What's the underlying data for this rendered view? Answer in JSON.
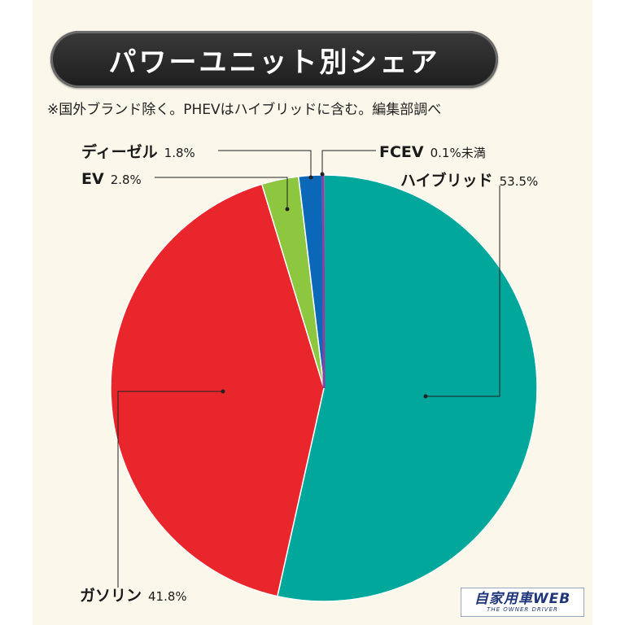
{
  "header": {
    "title": "パワーユニット別シェア",
    "subtitle": "※国外ブランド除く。PHEVはハイブリッドに含む。編集部調べ"
  },
  "chart_data": {
    "type": "pie",
    "title": "パワーユニット別シェア",
    "slices": [
      {
        "name": "ハイブリッド",
        "value": 53.5,
        "label": "53.5%",
        "color": "#00a79a"
      },
      {
        "name": "ガソリン",
        "value": 41.8,
        "label": "41.8%",
        "color": "#e8262c"
      },
      {
        "name": "EV",
        "value": 2.8,
        "label": "2.8%",
        "color": "#8dc63f"
      },
      {
        "name": "ディーゼル",
        "value": 1.8,
        "label": "1.8%",
        "color": "#0b67b8"
      },
      {
        "name": "FCEV",
        "value": 0.1,
        "label": "0.1%未満",
        "color": "#8e3fa0"
      }
    ]
  },
  "logo": {
    "main": "自家用車WEB",
    "sub": "THE OWNER DRIVER"
  }
}
